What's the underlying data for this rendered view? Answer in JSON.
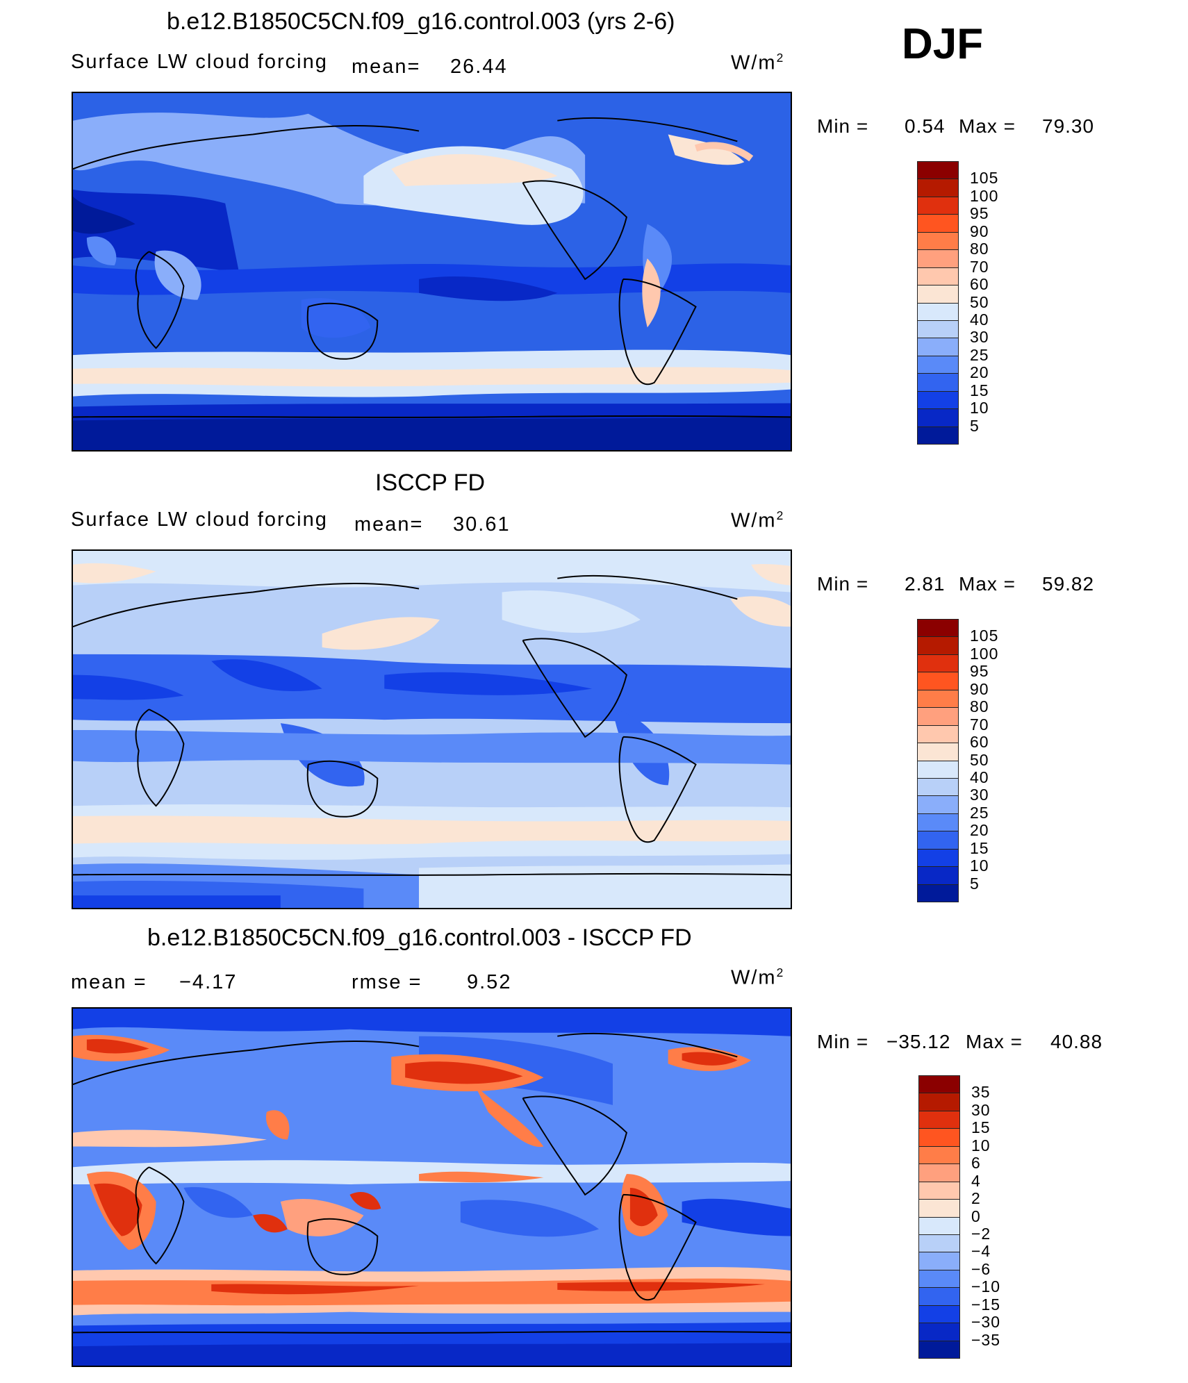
{
  "page": {
    "season": "DJF",
    "units_main": "W/m",
    "units_sup": "2"
  },
  "panels": [
    {
      "title": "b.e12.B1850C5CN.f09_g16.control.003 (yrs 2-6)",
      "variable": "Surface LW cloud forcing",
      "mean_label": "mean=",
      "mean_value": "26.44",
      "min_label": "Min =",
      "min_value": "0.54",
      "max_label": "Max =",
      "max_value": "79.30"
    },
    {
      "title": "ISCCP FD",
      "variable": "Surface LW cloud forcing",
      "mean_label": "mean=",
      "mean_value": "30.61",
      "min_label": "Min =",
      "min_value": "2.81",
      "max_label": "Max =",
      "max_value": "59.82"
    },
    {
      "title": "b.e12.B1850C5CN.f09_g16.control.003 - ISCCP FD",
      "mean_label": "mean =",
      "mean_value": "−4.17",
      "rmse_label": "rmse =",
      "rmse_value": "9.52",
      "min_label": "Min =",
      "min_value": "−35.12",
      "max_label": "Max =",
      "max_value": "40.88"
    }
  ],
  "chart_data": [
    {
      "type": "heatmap",
      "title": "b.e12.B1850C5CN.f09_g16.control.003 (yrs 2-6)",
      "subtitle": "Surface LW cloud forcing",
      "units": "W/m2",
      "mean": 26.44,
      "min": 0.54,
      "max": 79.3,
      "colorbar_levels": [
        "105",
        "100",
        "95",
        "90",
        "80",
        "70",
        "60",
        "50",
        "40",
        "30",
        "25",
        "20",
        "15",
        "10",
        "5"
      ],
      "colorbar_colors": [
        "#8b0000",
        "#b51a00",
        "#e0300e",
        "#ff5520",
        "#ff7d48",
        "#ffa07e",
        "#ffc8ae",
        "#fbe5d4",
        "#d8e8fb",
        "#b8d0f8",
        "#8aaefa",
        "#5a8af8",
        "#3264f0",
        "#1340e6",
        "#0828c6",
        "#001a9a"
      ]
    },
    {
      "type": "heatmap",
      "title": "ISCCP FD",
      "subtitle": "Surface LW cloud forcing",
      "units": "W/m2",
      "mean": 30.61,
      "min": 2.81,
      "max": 59.82,
      "colorbar_levels": [
        "105",
        "100",
        "95",
        "90",
        "80",
        "70",
        "60",
        "50",
        "40",
        "30",
        "25",
        "20",
        "15",
        "10",
        "5"
      ],
      "colorbar_colors": [
        "#8b0000",
        "#b51a00",
        "#e0300e",
        "#ff5520",
        "#ff7d48",
        "#ffa07e",
        "#ffc8ae",
        "#fbe5d4",
        "#d8e8fb",
        "#b8d0f8",
        "#8aaefa",
        "#5a8af8",
        "#3264f0",
        "#1340e6",
        "#0828c6",
        "#001a9a"
      ]
    },
    {
      "type": "heatmap",
      "title": "b.e12.B1850C5CN.f09_g16.control.003 - ISCCP FD",
      "units": "W/m2",
      "mean": -4.17,
      "rmse": 9.52,
      "min": -35.12,
      "max": 40.88,
      "colorbar_levels": [
        "35",
        "30",
        "15",
        "10",
        "6",
        "4",
        "2",
        "0",
        "−2",
        "−4",
        "−6",
        "−10",
        "−15",
        "−30",
        "−35"
      ],
      "colorbar_colors": [
        "#8b0000",
        "#b51a00",
        "#e0300e",
        "#ff5520",
        "#ff7d48",
        "#ffa07e",
        "#ffc8ae",
        "#fbe5d4",
        "#d8e8fb",
        "#b8d0f8",
        "#8aaefa",
        "#5a8af8",
        "#3264f0",
        "#1340e6",
        "#0828c6",
        "#001a9a"
      ]
    }
  ]
}
